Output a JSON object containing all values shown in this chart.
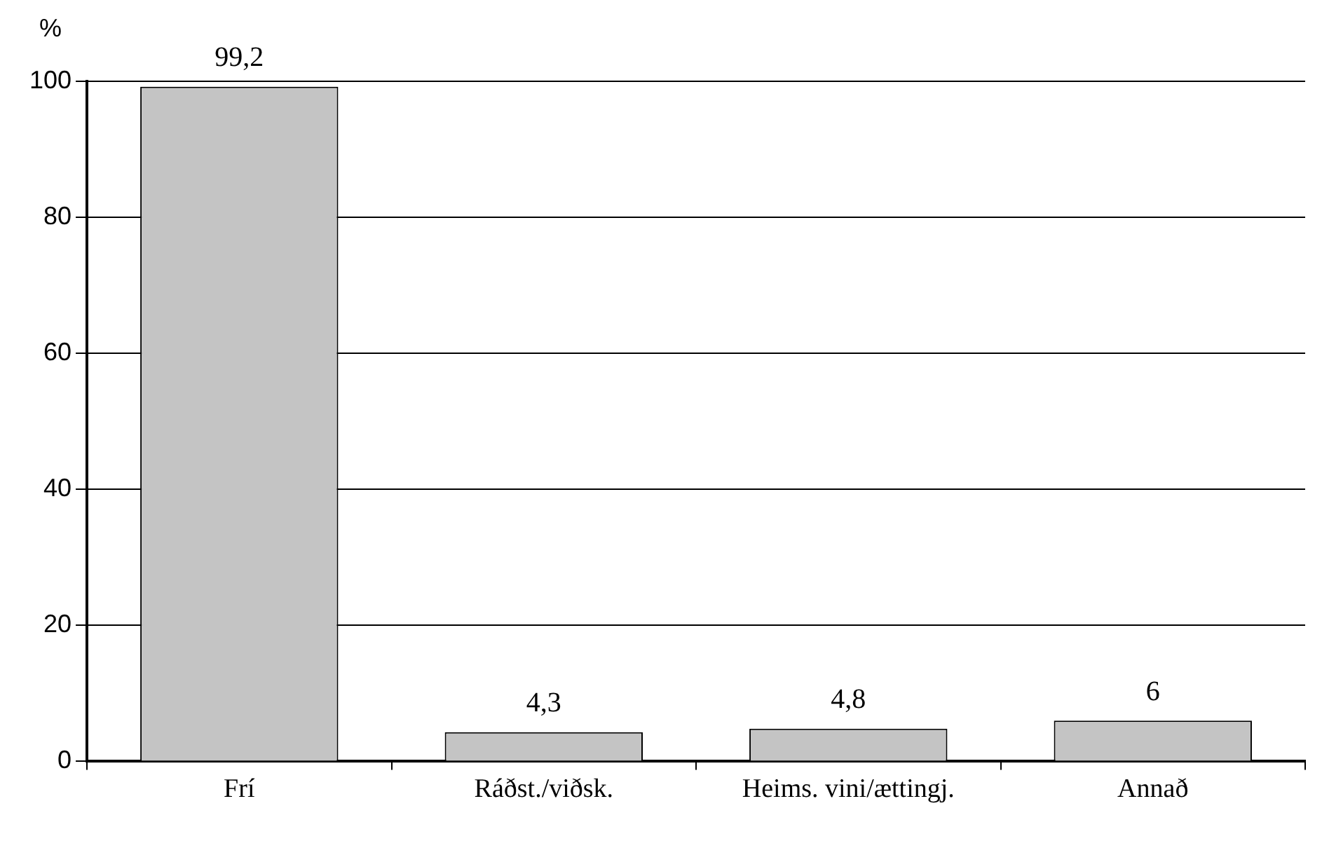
{
  "chart_data": {
    "type": "bar",
    "ylabel": "%",
    "categories": [
      "Frí",
      "Ráðst./viðsk.",
      "Heims. vini/ættingj.",
      "Annað"
    ],
    "values": [
      99.2,
      4.3,
      4.8,
      6
    ],
    "value_labels": [
      "99,2",
      "4,3",
      "4,8",
      "6"
    ],
    "color": "#c4c4c4",
    "ylim": [
      0,
      100
    ],
    "yticks": [
      0,
      20,
      40,
      60,
      80,
      100
    ],
    "grid": "y",
    "legend": false
  }
}
